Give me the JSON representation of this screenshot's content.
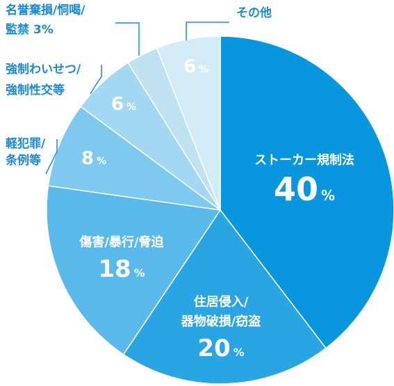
{
  "chart_data": {
    "type": "pie",
    "slices": [
      {
        "label_lines": [
          "ストーカー規制法"
        ],
        "value": 40,
        "display": "40",
        "unit": "%",
        "color": "#0896de"
      },
      {
        "label_lines": [
          "住居侵入/",
          "器物破損/窃盗"
        ],
        "value": 20,
        "display": "20",
        "unit": "%",
        "color": "#2aa5e4"
      },
      {
        "label_lines": [
          "傷害/暴行/脅迫"
        ],
        "value": 18,
        "display": "18",
        "unit": "%",
        "color": "#58b9ea"
      },
      {
        "label_lines": [
          "軽犯罪/",
          "条例等"
        ],
        "value": 8,
        "display": "8",
        "unit": "%",
        "color": "#7ec9ee"
      },
      {
        "label_lines": [
          "強制わいせつ/",
          "強制性交等"
        ],
        "value": 6,
        "display": "6",
        "unit": "%",
        "color": "#a2d8f2"
      },
      {
        "label_lines": [
          "名誉棄損/恫喝/",
          "監禁 3%"
        ],
        "value": 3,
        "display": "",
        "unit": "",
        "color": "#bfe2f3"
      },
      {
        "label_lines": [
          "その他"
        ],
        "value": 6,
        "display": "6",
        "unit": "%",
        "color": "#d3ebf6"
      }
    ],
    "label_color": "#1a8ad6",
    "start": "12 o'clock",
    "direction": "clockwise"
  }
}
